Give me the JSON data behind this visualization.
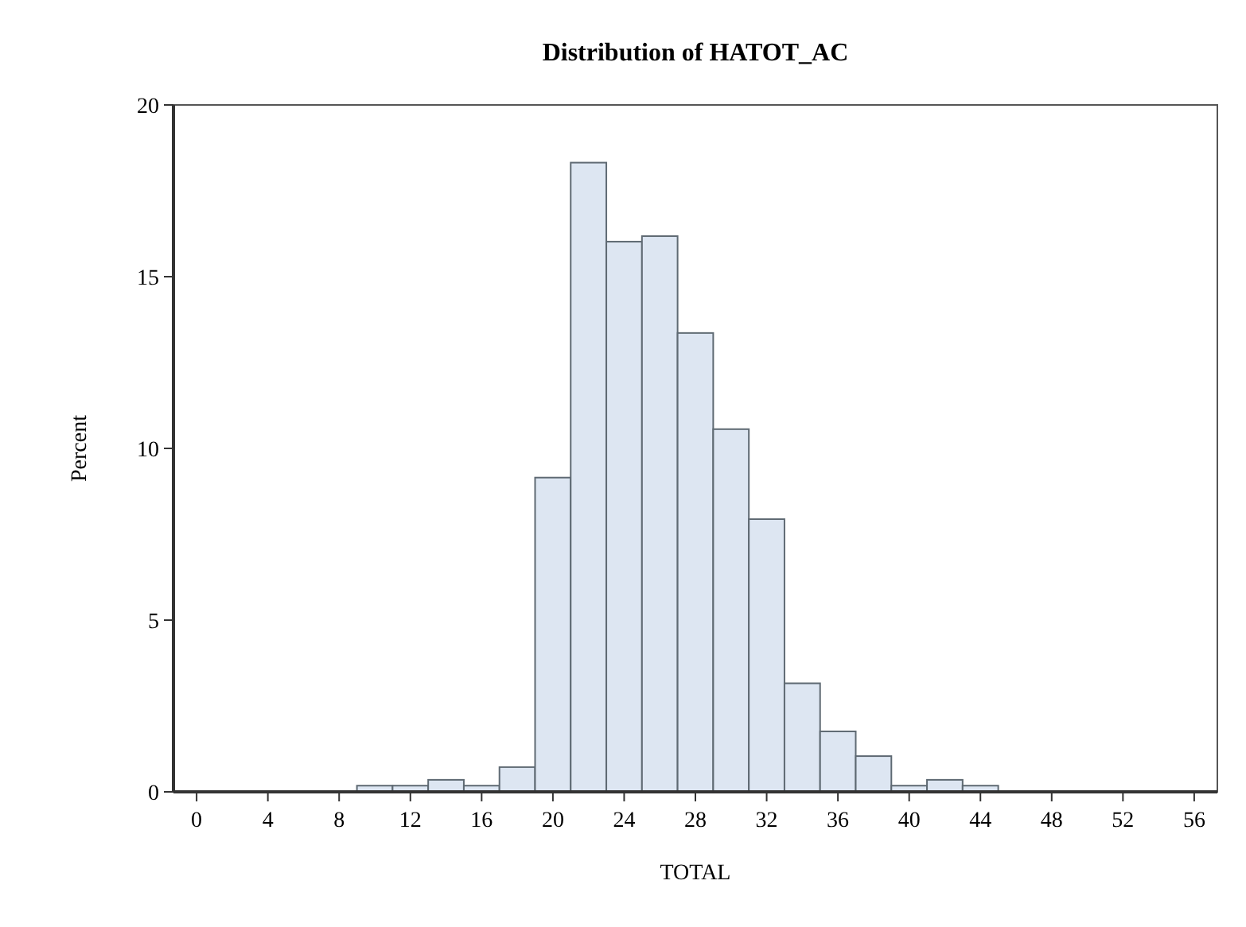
{
  "chart_data": {
    "type": "histogram",
    "title": "Distribution of HATOT_AC",
    "xlabel": "TOTAL",
    "ylabel": "Percent",
    "bins": [
      9,
      11,
      13,
      15,
      17,
      19,
      21,
      23,
      25,
      27,
      29,
      31,
      33,
      35,
      37,
      39,
      41,
      43,
      45
    ],
    "values": [
      0.18,
      0.18,
      0.35,
      0.18,
      0.72,
      9.15,
      18.32,
      16.02,
      16.18,
      13.36,
      10.56,
      7.94,
      3.16,
      1.76,
      1.04,
      0.18,
      0.35,
      0.18
    ],
    "color": "#dde6f2",
    "xlim": [
      -1.3,
      57.3
    ],
    "xticks": [
      0,
      4,
      8,
      12,
      16,
      20,
      24,
      28,
      32,
      36,
      40,
      44,
      48,
      52,
      56
    ],
    "ylim": [
      0,
      20
    ],
    "yticks": [
      0,
      5,
      10,
      15,
      20
    ],
    "grid": false
  }
}
